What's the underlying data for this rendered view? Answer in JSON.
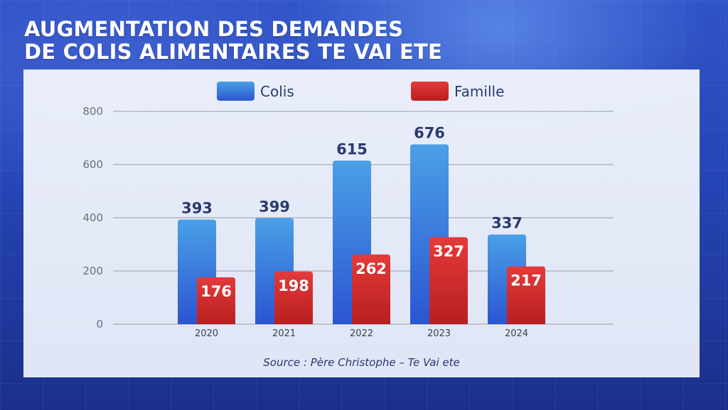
{
  "title": {
    "line1": "AUGMENTATION DES DEMANDES",
    "line2": "DE COLIS ALIMENTAIRES TE VAI ETE"
  },
  "source": "Source : Père Christophe – Te Vai ete",
  "colors": {
    "colis_top": "#4aa0e6",
    "colis_bottom": "#2b55d2",
    "famille_top": "#e43a3a",
    "famille_bottom": "#b81f1f",
    "axis_text": "#6b6f7e",
    "label_dark": "#2a3a6e",
    "grid": "#a9adb8"
  },
  "chart_data": {
    "type": "bar",
    "categories": [
      "2020",
      "2021",
      "2022",
      "2023",
      "2024"
    ],
    "series": [
      {
        "name": "Colis",
        "values": [
          393,
          399,
          615,
          676,
          337
        ]
      },
      {
        "name": "Famille",
        "values": [
          176,
          198,
          262,
          327,
          217
        ]
      }
    ],
    "yticks": [
      "0",
      "200",
      "400",
      "600",
      "800"
    ],
    "ylim": [
      0,
      800
    ],
    "legend_position": "top-center",
    "grid": true,
    "data_labels": true
  }
}
